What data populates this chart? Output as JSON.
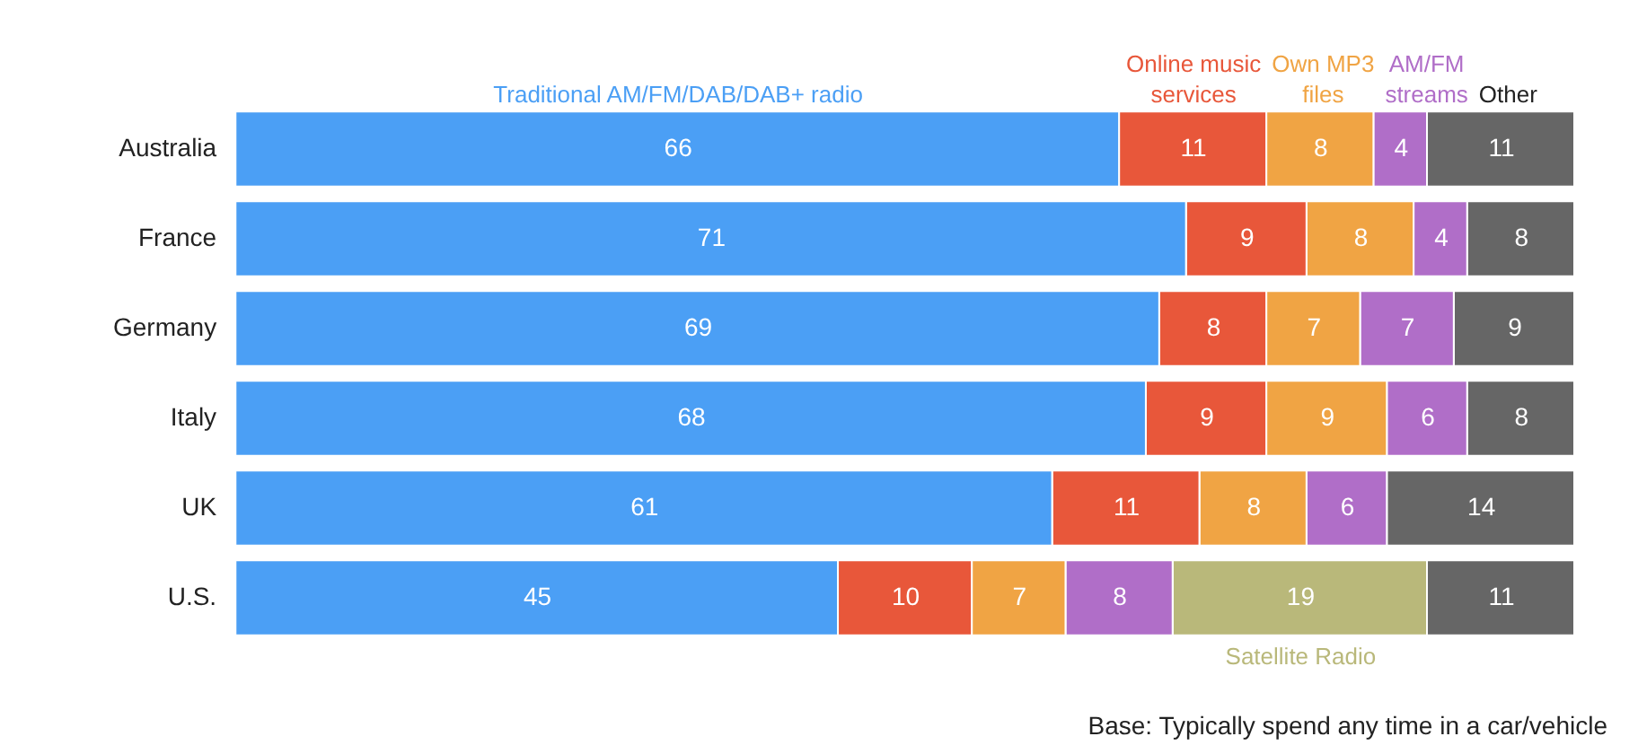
{
  "chart_data": {
    "type": "bar",
    "orientation": "horizontal",
    "stacked": true,
    "categories": [
      "Australia",
      "France",
      "Germany",
      "Italy",
      "UK",
      "U.S."
    ],
    "series": [
      {
        "name": "Traditional AM/FM/DAB/DAB+ radio",
        "color": "#4b9ff5",
        "values": [
          66,
          71,
          69,
          68,
          61,
          45
        ]
      },
      {
        "name": "Online music services",
        "color": "#e8573a",
        "values": [
          11,
          9,
          8,
          9,
          11,
          10
        ]
      },
      {
        "name": "Own MP3 files",
        "color": "#f0a444",
        "values": [
          8,
          8,
          7,
          9,
          8,
          7
        ]
      },
      {
        "name": "AM/FM streams",
        "color": "#b06ec8",
        "values": [
          4,
          4,
          7,
          6,
          6,
          8
        ]
      },
      {
        "name": "Satellite Radio",
        "color": "#b9b87a",
        "values": [
          null,
          null,
          null,
          null,
          null,
          19
        ]
      },
      {
        "name": "Other",
        "color": "#666666",
        "values": [
          11,
          8,
          9,
          8,
          14,
          11
        ]
      }
    ],
    "xlim": [
      0,
      100
    ],
    "data_labels": true,
    "tick_labels": "y",
    "annotations": [
      "Base: Typically spend any time in a car/vehicle"
    ]
  }
}
